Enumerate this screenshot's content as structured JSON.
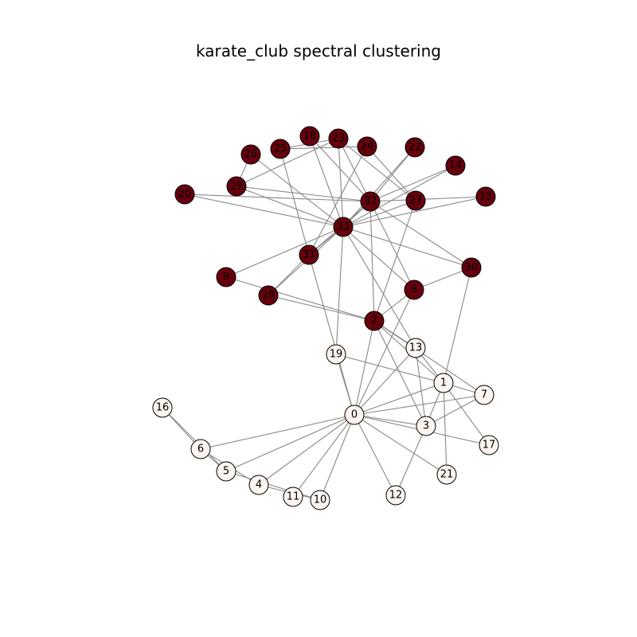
{
  "title": "karate_club spectral clustering",
  "colors": {
    "cluster_dark": "#67000d",
    "cluster_light": "#fff5f0",
    "edge": "#888888",
    "node_stroke": "#000000"
  },
  "nodes": [
    {
      "id": "0",
      "cluster": "light"
    },
    {
      "id": "1",
      "cluster": "light"
    },
    {
      "id": "2",
      "cluster": "dark"
    },
    {
      "id": "3",
      "cluster": "light"
    },
    {
      "id": "4",
      "cluster": "light"
    },
    {
      "id": "5",
      "cluster": "light"
    },
    {
      "id": "6",
      "cluster": "light"
    },
    {
      "id": "7",
      "cluster": "light"
    },
    {
      "id": "8",
      "cluster": "dark"
    },
    {
      "id": "9",
      "cluster": "dark"
    },
    {
      "id": "10",
      "cluster": "light"
    },
    {
      "id": "11",
      "cluster": "light"
    },
    {
      "id": "12",
      "cluster": "light"
    },
    {
      "id": "13",
      "cluster": "light"
    },
    {
      "id": "14",
      "cluster": "dark"
    },
    {
      "id": "15",
      "cluster": "dark"
    },
    {
      "id": "16",
      "cluster": "light"
    },
    {
      "id": "17",
      "cluster": "light"
    },
    {
      "id": "18",
      "cluster": "dark"
    },
    {
      "id": "19",
      "cluster": "light"
    },
    {
      "id": "20",
      "cluster": "dark"
    },
    {
      "id": "21",
      "cluster": "light"
    },
    {
      "id": "22",
      "cluster": "dark"
    },
    {
      "id": "23",
      "cluster": "dark"
    },
    {
      "id": "24",
      "cluster": "dark"
    },
    {
      "id": "25",
      "cluster": "dark"
    },
    {
      "id": "26",
      "cluster": "dark"
    },
    {
      "id": "27",
      "cluster": "dark"
    },
    {
      "id": "28",
      "cluster": "dark"
    },
    {
      "id": "29",
      "cluster": "dark"
    },
    {
      "id": "30",
      "cluster": "dark"
    },
    {
      "id": "31",
      "cluster": "dark"
    },
    {
      "id": "32",
      "cluster": "dark"
    },
    {
      "id": "33",
      "cluster": "dark"
    }
  ],
  "edges": [
    [
      "0",
      "1"
    ],
    [
      "0",
      "2"
    ],
    [
      "0",
      "3"
    ],
    [
      "0",
      "4"
    ],
    [
      "0",
      "5"
    ],
    [
      "0",
      "6"
    ],
    [
      "0",
      "7"
    ],
    [
      "0",
      "8"
    ],
    [
      "0",
      "10"
    ],
    [
      "0",
      "11"
    ],
    [
      "0",
      "12"
    ],
    [
      "0",
      "13"
    ],
    [
      "0",
      "17"
    ],
    [
      "0",
      "19"
    ],
    [
      "0",
      "21"
    ],
    [
      "0",
      "31"
    ],
    [
      "1",
      "2"
    ],
    [
      "1",
      "3"
    ],
    [
      "1",
      "7"
    ],
    [
      "1",
      "13"
    ],
    [
      "1",
      "17"
    ],
    [
      "1",
      "19"
    ],
    [
      "1",
      "21"
    ],
    [
      "1",
      "30"
    ],
    [
      "2",
      "3"
    ],
    [
      "2",
      "7"
    ],
    [
      "2",
      "8"
    ],
    [
      "2",
      "9"
    ],
    [
      "2",
      "13"
    ],
    [
      "2",
      "27"
    ],
    [
      "2",
      "28"
    ],
    [
      "2",
      "32"
    ],
    [
      "3",
      "7"
    ],
    [
      "3",
      "12"
    ],
    [
      "3",
      "13"
    ],
    [
      "4",
      "6"
    ],
    [
      "4",
      "10"
    ],
    [
      "5",
      "6"
    ],
    [
      "5",
      "10"
    ],
    [
      "5",
      "16"
    ],
    [
      "6",
      "16"
    ],
    [
      "8",
      "30"
    ],
    [
      "8",
      "32"
    ],
    [
      "8",
      "33"
    ],
    [
      "9",
      "33"
    ],
    [
      "13",
      "33"
    ],
    [
      "14",
      "32"
    ],
    [
      "14",
      "33"
    ],
    [
      "15",
      "32"
    ],
    [
      "15",
      "33"
    ],
    [
      "18",
      "32"
    ],
    [
      "18",
      "33"
    ],
    [
      "19",
      "33"
    ],
    [
      "20",
      "32"
    ],
    [
      "20",
      "33"
    ],
    [
      "22",
      "32"
    ],
    [
      "22",
      "33"
    ],
    [
      "23",
      "25"
    ],
    [
      "23",
      "27"
    ],
    [
      "23",
      "29"
    ],
    [
      "23",
      "32"
    ],
    [
      "23",
      "33"
    ],
    [
      "24",
      "25"
    ],
    [
      "24",
      "27"
    ],
    [
      "24",
      "31"
    ],
    [
      "25",
      "31"
    ],
    [
      "26",
      "29"
    ],
    [
      "26",
      "33"
    ],
    [
      "27",
      "33"
    ],
    [
      "28",
      "31"
    ],
    [
      "28",
      "33"
    ],
    [
      "29",
      "32"
    ],
    [
      "29",
      "33"
    ],
    [
      "30",
      "32"
    ],
    [
      "30",
      "33"
    ],
    [
      "31",
      "32"
    ],
    [
      "31",
      "33"
    ],
    [
      "32",
      "33"
    ]
  ]
}
